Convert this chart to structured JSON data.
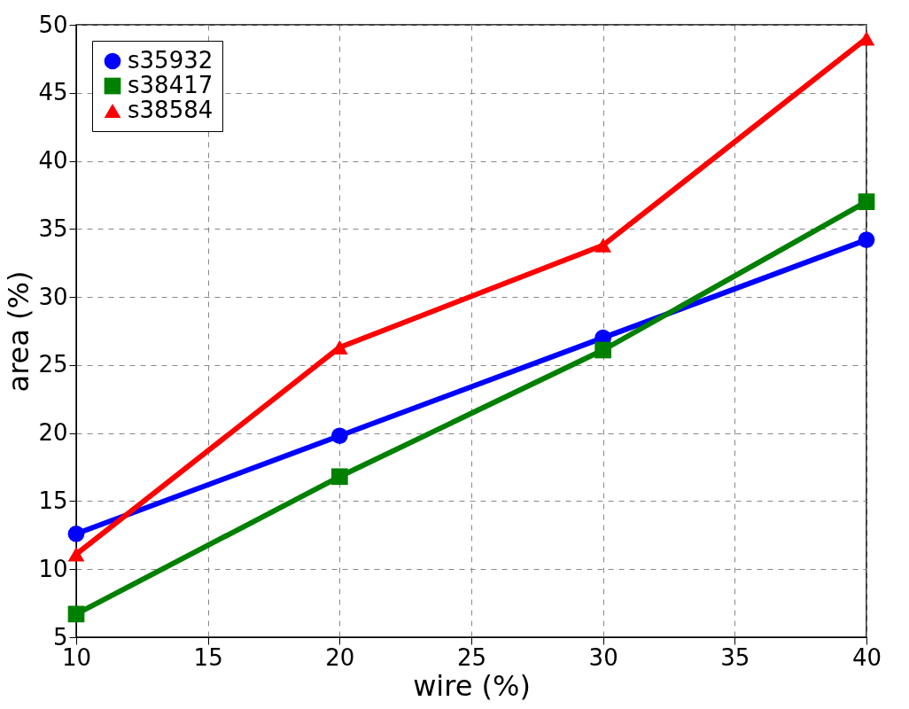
{
  "chart_data": {
    "type": "line",
    "xlabel": "wire (%)",
    "ylabel": "area (%)",
    "x": [
      10,
      20,
      30,
      40
    ],
    "series": [
      {
        "name": "s35932",
        "color": "#0000ff",
        "marker": "circle",
        "values": [
          12.6,
          19.8,
          27.0,
          34.2
        ]
      },
      {
        "name": "s38417",
        "color": "#008000",
        "marker": "square",
        "values": [
          6.7,
          16.8,
          26.1,
          37.0
        ]
      },
      {
        "name": "s38584",
        "color": "#ff0000",
        "marker": "triangle",
        "values": [
          11.1,
          26.3,
          33.8,
          49.0
        ]
      }
    ],
    "xlim": [
      10,
      40
    ],
    "xticks": [
      10,
      15,
      20,
      25,
      30,
      35,
      40
    ],
    "ylim": [
      5,
      50
    ],
    "yticks": [
      5,
      10,
      15,
      20,
      25,
      30,
      35,
      40,
      45,
      50
    ],
    "grid": true,
    "legend": "top left",
    "line_style": "solid"
  }
}
